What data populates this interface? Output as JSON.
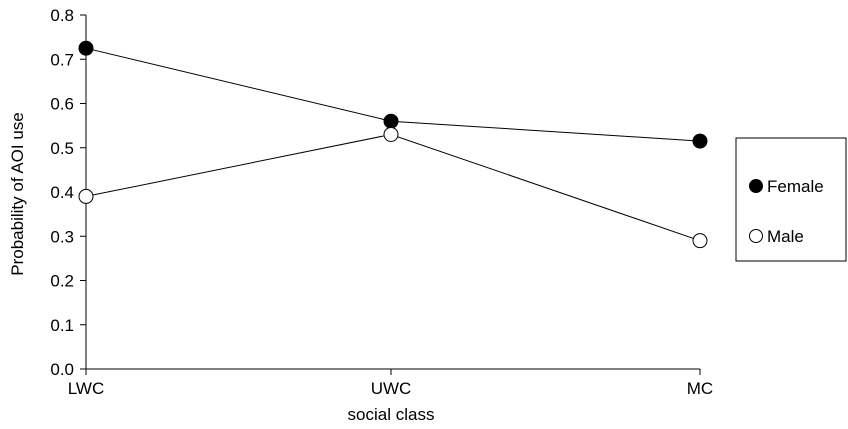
{
  "chart_data": {
    "type": "line",
    "title": "",
    "xlabel": "social class",
    "ylabel": "Probability of AOI use",
    "categories": [
      "LWC",
      "UWC",
      "MC"
    ],
    "ylim": [
      0.0,
      0.8
    ],
    "yticks": [
      0.0,
      0.1,
      0.2,
      0.3,
      0.4,
      0.5,
      0.6,
      0.7,
      0.8
    ],
    "ytick_labels": [
      "0.0",
      "0.1",
      "0.2",
      "0.3",
      "0.4",
      "0.5",
      "0.6",
      "0.7",
      "0.8"
    ],
    "grid": false,
    "legend_position": "right",
    "series": [
      {
        "name": "Female",
        "values": [
          0.725,
          0.56,
          0.515
        ],
        "marker": "filled-circle",
        "color": "#000000"
      },
      {
        "name": "Male",
        "values": [
          0.39,
          0.53,
          0.29
        ],
        "marker": "open-circle",
        "color": "#000000"
      }
    ]
  }
}
